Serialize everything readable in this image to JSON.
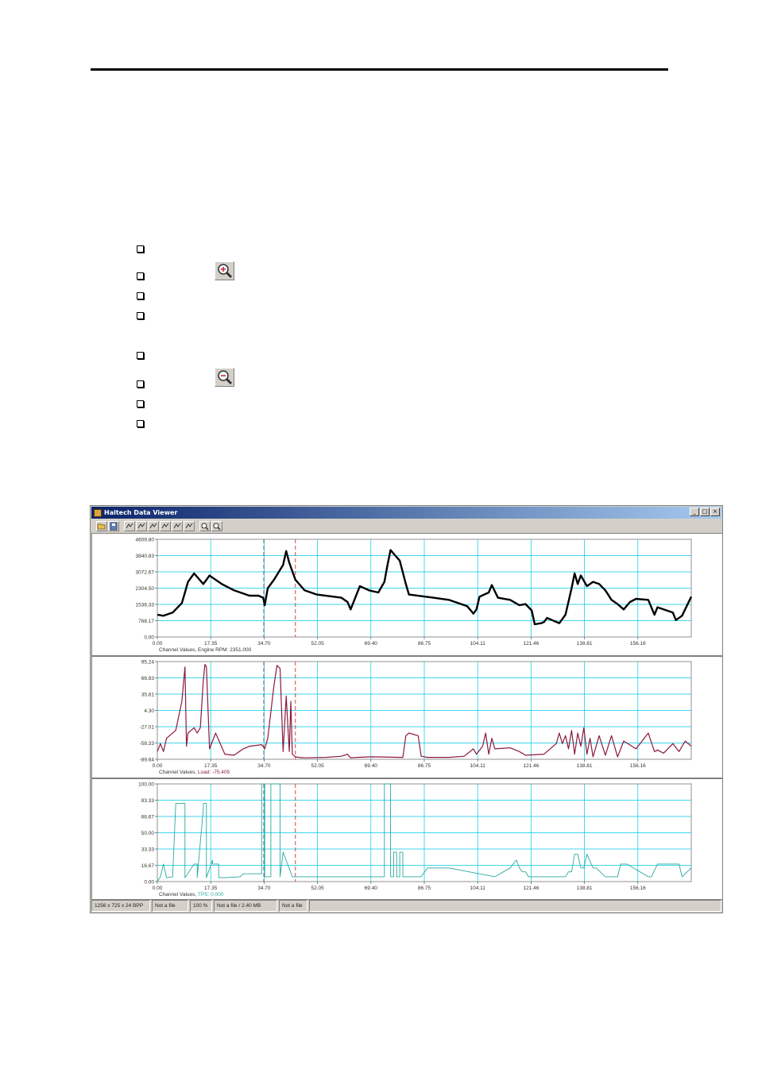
{
  "window": {
    "title": "Haltech Data Viewer",
    "controls": [
      "_",
      "□",
      "×"
    ]
  },
  "toolbar": {
    "buttons": [
      "open-icon",
      "save-icon",
      "channel-1-icon",
      "channel-2-icon",
      "channel-3-icon",
      "channel-4-icon",
      "channel-5-icon",
      "channel-6-icon",
      "zoom-in-icon",
      "zoom-out-icon"
    ]
  },
  "status": [
    "1256 x 725 x 24 BPP",
    "Not a file",
    "100 %",
    "Not a file / 2.40 MB",
    "Not a file"
  ],
  "colors": {
    "grid": "#00c8e6",
    "rpm": "#000000",
    "load": "#8b1a3c",
    "tps": "#2aa8a0",
    "cursor_gray": "#555555",
    "cursor_red": "#d03030"
  },
  "chart_data": [
    {
      "type": "line",
      "caption_prefix": "Channel Values,",
      "channel_label": "Engine RPM: 2351.000",
      "channel_color": "#000000",
      "yticks": [
        "4609.80",
        "3840.83",
        "3072.67",
        "2304.50",
        "1536.33",
        "768.17",
        "0.00"
      ],
      "xticks": [
        "0.00",
        "17.35",
        "34.70",
        "52.05",
        "69.40",
        "86.75",
        "104.11",
        "121.46",
        "138.81",
        "156.16"
      ],
      "xlim": [
        0,
        174
      ],
      "ylim": [
        0,
        4609.8
      ],
      "cursors": [
        34.7,
        45.0
      ],
      "x": [
        0,
        2,
        5,
        8,
        9,
        10,
        12,
        15,
        16,
        17,
        18,
        19,
        21,
        25,
        30,
        33,
        34.5,
        35,
        36,
        38,
        41,
        42,
        43,
        45,
        48,
        52,
        60,
        62,
        63,
        66,
        69,
        72,
        74,
        75,
        76,
        79,
        81,
        82,
        90,
        95,
        98,
        101,
        103,
        104,
        105,
        108,
        109,
        111,
        115,
        118,
        120,
        122,
        123,
        125,
        126,
        127,
        131,
        133,
        135,
        136,
        137,
        138,
        140,
        142,
        144,
        146,
        148,
        150,
        152,
        154,
        156,
        160,
        162,
        163,
        165,
        168,
        169,
        171,
        174
      ],
      "y": [
        1050,
        1000,
        1150,
        1600,
        2100,
        2600,
        3000,
        2500,
        2700,
        2900,
        2800,
        2700,
        2500,
        2200,
        1950,
        1950,
        1850,
        1500,
        2300,
        2700,
        3400,
        4050,
        3500,
        2700,
        2200,
        2000,
        1850,
        1650,
        1300,
        2400,
        2200,
        2100,
        2600,
        3400,
        4100,
        3600,
        2500,
        2000,
        1850,
        1750,
        1600,
        1450,
        1100,
        1300,
        1900,
        2100,
        2450,
        1850,
        1750,
        1500,
        1550,
        1250,
        600,
        650,
        700,
        900,
        650,
        1050,
        2300,
        3000,
        2500,
        2900,
        2400,
        2600,
        2500,
        2200,
        1750,
        1550,
        1300,
        1650,
        1800,
        1750,
        1050,
        1400,
        1300,
        1150,
        800,
        1000,
        1900
      ]
    },
    {
      "type": "line",
      "caption_prefix": "Channel Values,",
      "channel_label": "Load: -75.405",
      "channel_color": "#8b1a3c",
      "yticks": [
        "95.24",
        "66.83",
        "35.81",
        "4.30",
        "-27.01",
        "-58.33",
        "-89.64"
      ],
      "xticks": [
        "0.00",
        "17.35",
        "34.70",
        "52.05",
        "69.40",
        "86.75",
        "104.11",
        "121.46",
        "138.81",
        "156.16"
      ],
      "xlim": [
        0,
        174
      ],
      "ylim": [
        -89.64,
        95.24
      ],
      "cursors": [
        34.7,
        45.0
      ],
      "x": [
        0,
        1,
        2,
        3,
        6,
        8,
        9,
        9.5,
        10,
        11,
        12,
        13,
        14,
        15,
        15.5,
        16,
        17,
        18,
        19,
        22,
        25,
        28,
        30,
        34,
        35,
        36,
        38,
        39,
        40,
        41,
        42,
        43,
        43.5,
        44,
        45,
        46,
        48,
        55,
        60,
        62,
        63,
        65,
        70,
        80,
        81,
        82,
        85,
        86,
        88,
        95,
        100,
        103,
        104,
        106,
        107,
        108,
        109,
        110,
        115,
        118,
        120,
        126,
        128,
        130,
        131,
        132,
        133,
        134,
        135,
        136,
        137,
        138,
        139,
        140,
        141,
        142,
        144,
        146,
        148,
        150,
        152,
        156,
        160,
        162,
        163,
        165,
        168,
        170,
        172,
        174
      ],
      "y": [
        -75,
        -60,
        -75,
        -50,
        -35,
        20,
        85,
        -65,
        -40,
        -35,
        -30,
        -40,
        -30,
        60,
        90,
        85,
        -70,
        -55,
        -40,
        -80,
        -82,
        -70,
        -65,
        -62,
        -70,
        -50,
        50,
        88,
        82,
        -75,
        30,
        -75,
        20,
        -80,
        -85,
        -86,
        -87,
        -86,
        -84,
        -80,
        -87,
        -86,
        -85,
        -86,
        -45,
        -40,
        -45,
        -84,
        -86,
        -86,
        -84,
        -70,
        -80,
        -65,
        -40,
        -80,
        -50,
        -70,
        -68,
        -75,
        -82,
        -80,
        -70,
        -60,
        -40,
        -60,
        -45,
        -70,
        -35,
        -80,
        -40,
        -65,
        -30,
        -80,
        -50,
        -85,
        -45,
        -82,
        -45,
        -85,
        -55,
        -70,
        -40,
        -75,
        -72,
        -78,
        -60,
        -75,
        -55,
        -65
      ]
    },
    {
      "type": "line",
      "caption_prefix": "Channel Values,",
      "channel_label": "TPS: 0.000",
      "channel_color": "#2aa8a0",
      "yticks": [
        "100.00",
        "83.33",
        "66.67",
        "50.00",
        "33.33",
        "16.67",
        "0.00"
      ],
      "xticks": [
        "0.00",
        "17.35",
        "34.70",
        "52.05",
        "69.40",
        "86.75",
        "104.11",
        "121.46",
        "138.81",
        "156.16"
      ],
      "xlim": [
        0,
        174
      ],
      "ylim": [
        0,
        100
      ],
      "cursors": [
        34.7,
        45.0
      ],
      "x": [
        0,
        1,
        2,
        3,
        5,
        6,
        8,
        9,
        9.01,
        12,
        12.01,
        13,
        13.01,
        15,
        15.01,
        16,
        16.01,
        18,
        18.01,
        20,
        20.01,
        22,
        27,
        28,
        29,
        34,
        34.01,
        35,
        35.01,
        37,
        37.01,
        40,
        40.01,
        41,
        41.01,
        44,
        44.01,
        74,
        74.01,
        76,
        76.01,
        77,
        77.01,
        78,
        78.01,
        79,
        79.01,
        80,
        80.01,
        81,
        82,
        86,
        88,
        89,
        95,
        110,
        115,
        117,
        118,
        119,
        120,
        121,
        126,
        133,
        134,
        135,
        136,
        137,
        138,
        139,
        140,
        142,
        143,
        146,
        150,
        151,
        153,
        160,
        161,
        163,
        170,
        171,
        174
      ],
      "y": [
        0,
        5,
        18,
        4,
        5,
        80,
        80,
        80,
        4,
        18,
        18,
        18,
        4,
        75,
        80,
        80,
        4,
        22,
        18,
        18,
        4,
        4,
        5,
        8,
        8,
        8,
        100,
        100,
        5,
        5,
        100,
        100,
        5,
        30,
        30,
        5,
        5,
        5,
        100,
        100,
        5,
        5,
        30,
        30,
        5,
        5,
        30,
        30,
        5,
        5,
        5,
        5,
        14,
        14,
        14,
        5,
        14,
        22,
        14,
        10,
        10,
        5,
        5,
        5,
        10,
        10,
        28,
        28,
        14,
        14,
        28,
        14,
        14,
        5,
        5,
        18,
        18,
        5,
        5,
        18,
        18,
        5,
        14
      ]
    }
  ]
}
